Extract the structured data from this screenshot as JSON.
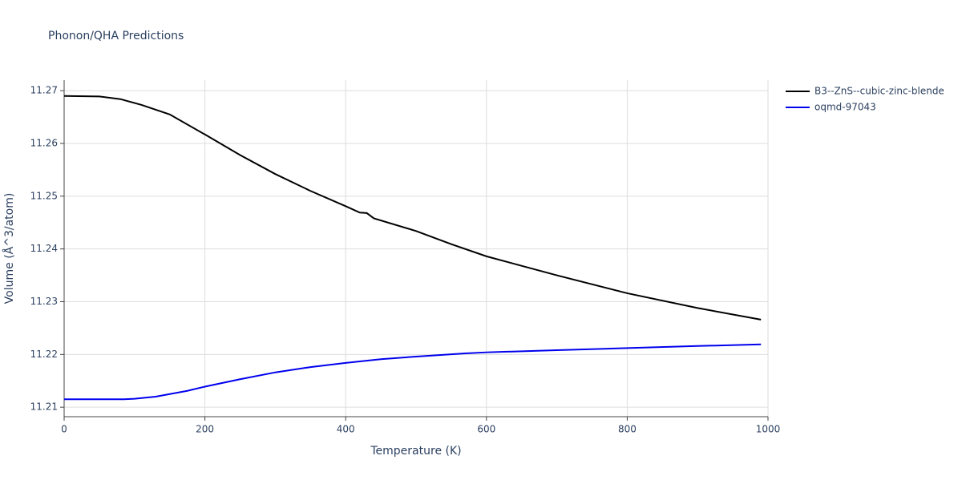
{
  "chart_data": {
    "type": "line",
    "title": "Phonon/QHA Predictions",
    "x_label": "Temperature (K)",
    "y_label": "Volume (Å^3/atom)",
    "xlim": [
      0,
      1000
    ],
    "xticks": [
      0,
      200,
      400,
      600,
      800,
      1000
    ],
    "ylim": [
      11.2082,
      11.272
    ],
    "yticks": [
      11.21,
      11.22,
      11.23,
      11.24,
      11.25,
      11.26,
      11.27
    ],
    "grid": true,
    "legend": "top-right",
    "series": [
      {
        "name": "B3--ZnS--cubic-zinc-blende",
        "color": "#000000",
        "x": [
          0,
          50,
          80,
          110,
          150,
          200,
          250,
          300,
          350,
          400,
          420,
          430,
          440,
          500,
          550,
          600,
          700,
          800,
          900,
          990
        ],
        "values": [
          11.269,
          11.2689,
          11.2684,
          11.2673,
          11.2655,
          11.2617,
          11.2578,
          11.2542,
          11.251,
          11.2481,
          11.2469,
          11.2468,
          11.2458,
          11.2434,
          11.2409,
          11.2386,
          11.235,
          11.2316,
          11.2288,
          11.2266
        ]
      },
      {
        "name": "oqmd-97043",
        "color": "#0000ee",
        "x": [
          0,
          85,
          100,
          130,
          175,
          200,
          250,
          300,
          350,
          400,
          450,
          500,
          570,
          600,
          700,
          800,
          900,
          990
        ],
        "values": [
          11.2115,
          11.2115,
          11.2116,
          11.212,
          11.2131,
          11.2139,
          11.2153,
          11.2166,
          11.2176,
          11.2184,
          11.2191,
          11.2196,
          11.2202,
          11.2204,
          11.2208,
          11.2212,
          11.2216,
          11.2219
        ]
      }
    ]
  }
}
